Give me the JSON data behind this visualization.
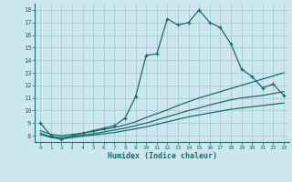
{
  "xlabel": "Humidex (Indice chaleur)",
  "bg_color": "#cce8ee",
  "grid_color": "#aaccd4",
  "line_color": "#1a6b6b",
  "xlim": [
    -0.5,
    23.5
  ],
  "ylim": [
    7.5,
    18.5
  ],
  "xticks": [
    0,
    1,
    2,
    3,
    4,
    5,
    6,
    7,
    8,
    9,
    10,
    11,
    12,
    13,
    14,
    15,
    16,
    17,
    18,
    19,
    20,
    21,
    22,
    23
  ],
  "yticks": [
    8,
    9,
    10,
    11,
    12,
    13,
    14,
    15,
    16,
    17,
    18
  ],
  "series1_x": [
    0,
    1,
    2,
    3,
    4,
    5,
    6,
    7,
    8,
    9,
    10,
    11,
    12,
    13,
    14,
    15,
    16,
    17,
    18,
    19,
    20,
    21,
    22,
    23
  ],
  "series1_y": [
    9.0,
    8.0,
    7.7,
    8.0,
    8.2,
    8.4,
    8.6,
    8.8,
    9.4,
    11.1,
    14.4,
    14.5,
    17.3,
    16.8,
    17.0,
    18.0,
    17.0,
    16.6,
    15.3,
    13.3,
    12.7,
    11.8,
    12.1,
    11.2
  ],
  "series2_x": [
    0,
    1,
    2,
    3,
    4,
    5,
    6,
    7,
    8,
    9,
    10,
    11,
    12,
    13,
    14,
    15,
    16,
    17,
    18,
    19,
    20,
    21,
    22,
    23
  ],
  "series2_y": [
    8.4,
    8.1,
    8.0,
    8.1,
    8.2,
    8.35,
    8.5,
    8.65,
    8.85,
    9.1,
    9.45,
    9.75,
    10.05,
    10.4,
    10.7,
    11.0,
    11.25,
    11.5,
    11.75,
    12.0,
    12.25,
    12.5,
    12.75,
    13.0
  ],
  "series3_x": [
    0,
    1,
    2,
    3,
    4,
    5,
    6,
    7,
    8,
    9,
    10,
    11,
    12,
    13,
    14,
    15,
    16,
    17,
    18,
    19,
    20,
    21,
    22,
    23
  ],
  "series3_y": [
    8.2,
    7.9,
    7.85,
    7.95,
    8.05,
    8.15,
    8.3,
    8.45,
    8.6,
    8.8,
    9.0,
    9.25,
    9.5,
    9.75,
    10.0,
    10.2,
    10.45,
    10.65,
    10.85,
    11.0,
    11.1,
    11.2,
    11.35,
    11.5
  ],
  "series4_x": [
    0,
    1,
    2,
    3,
    4,
    5,
    6,
    7,
    8,
    9,
    10,
    11,
    12,
    13,
    14,
    15,
    16,
    17,
    18,
    19,
    20,
    21,
    22,
    23
  ],
  "series4_y": [
    8.1,
    7.85,
    7.75,
    7.85,
    7.95,
    8.05,
    8.15,
    8.25,
    8.4,
    8.55,
    8.7,
    8.9,
    9.1,
    9.3,
    9.5,
    9.65,
    9.8,
    9.95,
    10.1,
    10.2,
    10.3,
    10.4,
    10.5,
    10.6
  ]
}
